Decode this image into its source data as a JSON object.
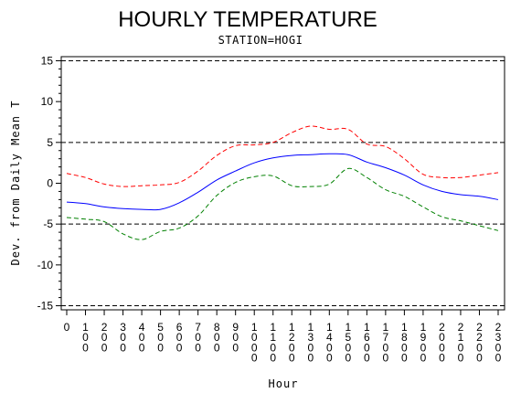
{
  "chart_data": {
    "type": "line",
    "title": "HOURLY TEMPERATURE",
    "subtitle": "STATION=HOGI",
    "xlabel": "Hour",
    "ylabel": "Dev. from Daily Mean T",
    "x_ticks": [
      "0",
      "100",
      "200",
      "300",
      "400",
      "500",
      "600",
      "700",
      "800",
      "900",
      "1000",
      "1100",
      "1200",
      "1300",
      "1400",
      "1500",
      "1600",
      "1700",
      "1800",
      "1900",
      "2000",
      "2100",
      "2200",
      "2300"
    ],
    "y_ticks": [
      -15,
      -10,
      -5,
      0,
      5,
      10,
      15
    ],
    "ylim": [
      -15.5,
      15.5
    ],
    "reference_lines": [
      -15,
      -5,
      5,
      15
    ],
    "x": [
      0,
      100,
      200,
      300,
      400,
      500,
      600,
      700,
      800,
      900,
      1000,
      1100,
      1200,
      1300,
      1400,
      1500,
      1600,
      1700,
      1800,
      1900,
      2000,
      2100,
      2200,
      2300
    ],
    "series": [
      {
        "color": "#0000ff",
        "style": "solid",
        "values": [
          -2.3,
          -2.5,
          -2.9,
          -3.1,
          -3.2,
          -3.2,
          -2.4,
          -1.1,
          0.4,
          1.5,
          2.5,
          3.1,
          3.4,
          3.5,
          3.6,
          3.5,
          2.6,
          1.9,
          1.0,
          -0.2,
          -1.0,
          -1.4,
          -1.6,
          -2.0
        ]
      },
      {
        "color": "#ff0000",
        "style": "dashed",
        "values": [
          1.2,
          0.7,
          -0.1,
          -0.4,
          -0.3,
          -0.2,
          0.1,
          1.5,
          3.4,
          4.6,
          4.7,
          5.0,
          6.2,
          7.0,
          6.6,
          6.6,
          4.8,
          4.5,
          3.0,
          1.1,
          0.7,
          0.7,
          1.0,
          1.3
        ]
      },
      {
        "color": "#008000",
        "style": "dashed",
        "values": [
          -4.2,
          -4.4,
          -4.7,
          -6.2,
          -6.9,
          -5.9,
          -5.5,
          -4.0,
          -1.5,
          0.1,
          0.8,
          0.9,
          -0.3,
          -0.4,
          -0.1,
          1.8,
          0.7,
          -0.8,
          -1.6,
          -2.9,
          -4.1,
          -4.6,
          -5.2,
          -5.8
        ]
      }
    ]
  }
}
